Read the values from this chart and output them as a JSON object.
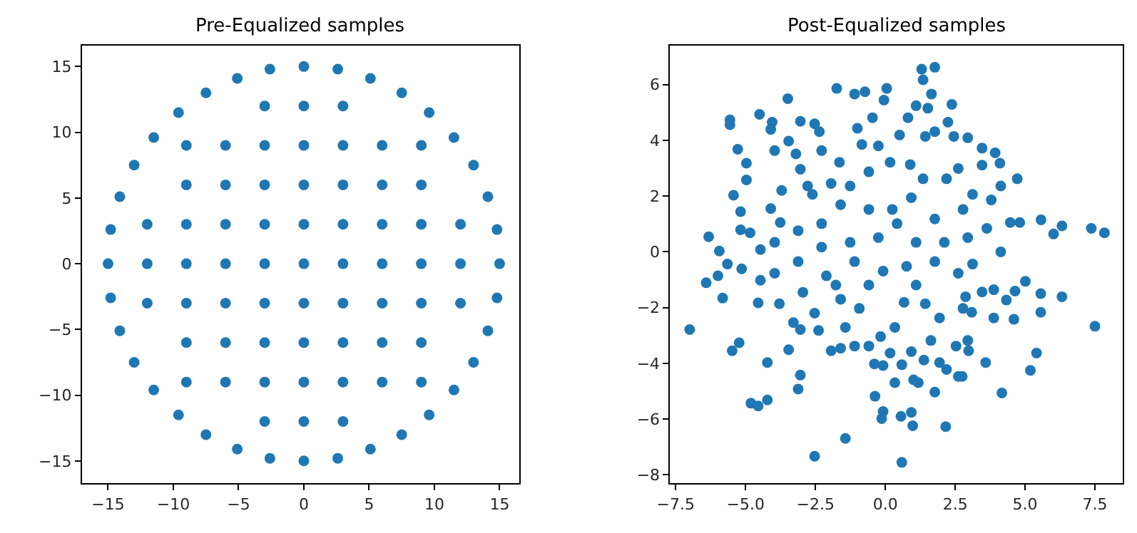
{
  "chart_data": [
    {
      "type": "scatter",
      "title": "Pre-Equalized samples",
      "xlim": [
        -17.0,
        16.5
      ],
      "ylim": [
        -16.7,
        16.6
      ],
      "xticks": [
        {
          "value": -15,
          "label": "−15"
        },
        {
          "value": -10,
          "label": "−10"
        },
        {
          "value": -5,
          "label": "−5"
        },
        0,
        5,
        10,
        15
      ],
      "yticks": [
        {
          "value": -15,
          "label": "−15"
        },
        {
          "value": -10,
          "label": "−10"
        },
        {
          "value": -5,
          "label": "−5"
        },
        0,
        5,
        10,
        15
      ],
      "marker": "circle",
      "series": [
        {
          "color": "#1f77b4",
          "x": [
            15,
            14.8,
            14.1,
            13.0,
            11.5,
            9.6,
            7.5,
            5.1,
            2.6,
            0,
            -2.6,
            -5.1,
            -7.5,
            -9.6,
            -11.5,
            -13.0,
            -14.1,
            -14.8,
            -15,
            -14.8,
            -14.1,
            -13.0,
            -11.5,
            -9.6,
            -7.5,
            -5.1,
            -2.6,
            0,
            2.6,
            5.1,
            7.5,
            9.6,
            11.5,
            13.0,
            14.1,
            14.8,
            -3,
            0,
            3,
            -9,
            -6,
            -3,
            0,
            3,
            6,
            9,
            -9,
            -6,
            -3,
            0,
            3,
            6,
            9,
            -12,
            -9,
            -6,
            -3,
            0,
            3,
            6,
            9,
            12,
            -12,
            -9,
            -6,
            -3,
            0,
            3,
            6,
            9,
            12,
            -12,
            -9,
            -6,
            -3,
            0,
            3,
            6,
            9,
            12,
            -9,
            -6,
            -3,
            0,
            3,
            6,
            9,
            -9,
            -6,
            -3,
            0,
            3,
            6,
            9,
            -3,
            0,
            3
          ],
          "values": [
            0,
            2.6,
            5.1,
            7.5,
            9.6,
            11.5,
            13.0,
            14.1,
            14.8,
            15,
            14.8,
            14.1,
            13.0,
            11.5,
            9.6,
            7.5,
            5.1,
            2.6,
            0,
            -2.6,
            -5.1,
            -7.5,
            -9.6,
            -11.5,
            -13.0,
            -14.1,
            -14.8,
            -15,
            -14.8,
            -14.1,
            -13.0,
            -11.5,
            -9.6,
            -7.5,
            -5.1,
            -2.6,
            12,
            12,
            12,
            9,
            9,
            9,
            9,
            9,
            9,
            9,
            6,
            6,
            6,
            6,
            6,
            6,
            6,
            3,
            3,
            3,
            3,
            3,
            3,
            3,
            3,
            3,
            0,
            0,
            0,
            0,
            0,
            0,
            0,
            0,
            0,
            -3,
            -3,
            -3,
            -3,
            -3,
            -3,
            -3,
            -3,
            -3,
            -6,
            -6,
            -6,
            -6,
            -6,
            -6,
            -6,
            -9,
            -9,
            -9,
            -9,
            -9,
            -9,
            -9,
            -12,
            -12,
            -12
          ]
        }
      ]
    },
    {
      "type": "scatter",
      "title": "Post-Equalized samples",
      "xlim": [
        -7.7,
        8.5
      ],
      "ylim": [
        -8.3,
        7.4
      ],
      "xticks": [
        {
          "value": -7.5,
          "label": "−7.5"
        },
        {
          "value": -5,
          "label": "−5.0"
        },
        {
          "value": -2.5,
          "label": "−2.5"
        },
        {
          "value": 0,
          "label": "0.0"
        },
        {
          "value": 2.5,
          "label": "2.5"
        },
        {
          "value": 5,
          "label": "5.0"
        },
        {
          "value": 7.5,
          "label": "7.5"
        }
      ],
      "yticks": [
        {
          "value": -8,
          "label": "−8"
        },
        {
          "value": -6,
          "label": "−6"
        },
        {
          "value": -4,
          "label": "−4"
        },
        {
          "value": -2,
          "label": "−2"
        },
        0,
        2,
        4,
        6
      ],
      "marker": "circle",
      "series": [
        {
          "color": "#1f77b4",
          "x": [
            -6.32,
            -5.94,
            -5.56,
            -5.56,
            -5.28,
            -5.43,
            -5.18,
            -4.97,
            -4.97,
            -5.18,
            -4.84,
            -4.5,
            -4.05,
            -4.1,
            -3.96,
            -3.49,
            -3.46,
            -3.2,
            -3.04,
            -3.71,
            -4.1,
            -3.76,
            -3.04,
            -2.53,
            -2.36,
            -2.28,
            -2.78,
            -2.61,
            -1.74,
            -1.1,
            -0.73,
            0.05,
            -0.05,
            -0.46,
            -1.0,
            -0.84,
            -1.64,
            -0.25,
            0.51,
            0.81,
            1.1,
            1.3,
            1.77,
            1.35,
            1.65,
            1.52,
            1.43,
            1.77,
            2.24,
            2.38,
            2.45,
            2.95,
            3.46,
            3.93,
            4.1,
            3.46,
            2.61,
            2.19,
            1.35,
            0.89,
            0.17,
            -0.59,
            -1.26,
            -1.94,
            4.13,
            4.72,
            3.79,
            3.12,
            2.78,
            1.77,
            0.93,
            0.25,
            -0.59,
            -1.6,
            -2.28,
            -3.12,
            -3.96,
            -4.47,
            4.47,
            4.81,
            5.57,
            6.02,
            6.32,
            7.37,
            7.84,
            4.13,
            3.63,
            2.95,
            2.11,
            1.1,
            -0.25,
            -1.26,
            -2.28,
            0.42,
            -7.0,
            -6.41,
            -5.99,
            -5.82,
            -5.65,
            -5.14,
            -4.55,
            -4.47,
            -5.48,
            -5.23,
            -4.22,
            -4.81,
            -4.55,
            -4.22,
            -3.46,
            -3.04,
            -3.12,
            -2.53,
            -1.43,
            -3.79,
            -3.96,
            -3.29,
            -3.04,
            -2.39,
            -2.53,
            -2.95,
            -1.94,
            -1.6,
            -1.1,
            -0.59,
            -0.39,
            -0.08,
            0.17,
            0.34,
            -0.37,
            -0.08,
            -0.13,
            0.56,
            0.93,
            0.98,
            0.59,
            0.59,
            0.93,
            1.01,
            1.18,
            1.38,
            1.77,
            2.16,
            1.94,
            2.19,
            2.61,
            2.75,
            2.53,
            2.98,
            2.95,
            1.63,
            3.59,
            4.17,
            5.19,
            5.41,
            7.5,
            5.56,
            5.56,
            6.32,
            4.6,
            4.33,
            4.64,
            5.01,
            3.88,
            3.88,
            3.46,
            2.87,
            2.78,
            3.09,
            2.61,
            3.12,
            1.94,
            1.43,
            1.1,
            0.67,
            0.34,
            -0.17,
            -0.93,
            -1.43,
            -1.6,
            -2.11,
            -1.77,
            -0.59,
            -0.08,
            0.76,
            1.77,
            -1.1,
            -3.12
          ],
          "values": [
            0.54,
            0.03,
            4.73,
            4.56,
            3.68,
            2.03,
            1.44,
            3.18,
            2.58,
            0.79,
            0.68,
            4.93,
            4.65,
            4.39,
            3.63,
            5.49,
            3.97,
            3.51,
            2.96,
            2.2,
            1.55,
            1.05,
            4.68,
            4.59,
            4.31,
            3.63,
            2.36,
            2.06,
            5.86,
            5.66,
            5.74,
            5.86,
            5.44,
            4.81,
            4.43,
            3.85,
            3.21,
            3.8,
            4.19,
            4.81,
            5.24,
            6.55,
            6.62,
            6.17,
            5.66,
            5.15,
            4.14,
            4.31,
            4.65,
            5.29,
            4.14,
            4.09,
            3.72,
            3.55,
            3.18,
            3.11,
            2.99,
            2.62,
            2.62,
            3.13,
            3.21,
            2.87,
            2.36,
            2.45,
            2.36,
            2.62,
            1.86,
            2.06,
            1.52,
            1.18,
            1.94,
            1.52,
            1.52,
            1.69,
            1.01,
            0.76,
            0.34,
            0.08,
            1.05,
            1.05,
            1.15,
            0.64,
            0.93,
            0.84,
            0.68,
            0.0,
            0.84,
            0.51,
            0.34,
            0.34,
            0.51,
            0.34,
            0.17,
            1.01,
            -2.79,
            -1.11,
            -0.86,
            -1.66,
            -0.44,
            -0.61,
            -1.83,
            -1.02,
            -3.55,
            -3.26,
            -3.97,
            -5.43,
            -5.53,
            -5.31,
            -3.51,
            -4.42,
            -4.92,
            -7.33,
            -6.69,
            -1.86,
            -0.77,
            -2.54,
            -2.79,
            -2.82,
            -2.2,
            -1.45,
            -3.55,
            -3.46,
            -3.38,
            -3.38,
            -4.02,
            -4.08,
            -3.63,
            -4.69,
            -5.18,
            -5.73,
            -5.98,
            -5.9,
            -5.76,
            -6.24,
            -7.55,
            -4.05,
            -3.58,
            -4.59,
            -4.69,
            -3.88,
            -5.03,
            -6.27,
            -3.97,
            -4.22,
            -4.47,
            -4.47,
            -3.38,
            -3.55,
            -3.18,
            -3.18,
            -3.97,
            -5.06,
            -4.25,
            -3.63,
            -2.67,
            -1.5,
            -2.17,
            -1.61,
            -2.42,
            -1.73,
            -1.41,
            -1.06,
            -1.36,
            -2.37,
            -1.44,
            -1.61,
            -2.03,
            -2.17,
            -0.77,
            -0.44,
            -2.37,
            -1.86,
            -1.19,
            -1.81,
            -2.71,
            -3.04,
            -2.03,
            -2.71,
            -1.7,
            -0.86,
            -1.19,
            -1.19,
            -0.69,
            -0.52,
            -0.35,
            -0.35,
            -0.35
          ]
        }
      ]
    }
  ]
}
